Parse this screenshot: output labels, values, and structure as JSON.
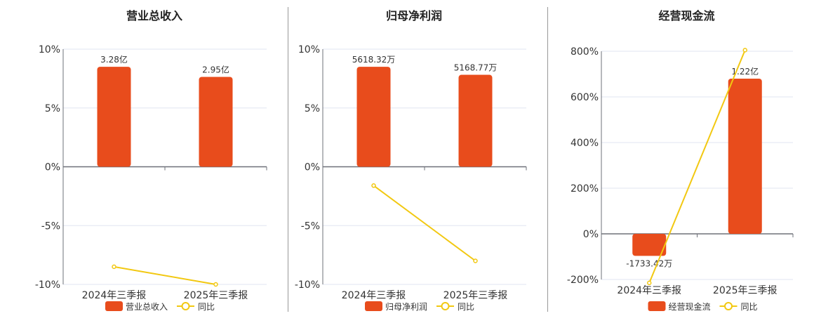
{
  "colors": {
    "bar": "#e84c1c",
    "line": "#f2c811",
    "grid": "#e0e6f0",
    "axis": "#6e7079"
  },
  "chart_data": [
    {
      "type": "bar+line",
      "title": "营业总收入",
      "categories": [
        "2024年三季报",
        "2025年三季报"
      ],
      "bar_series": {
        "name": "营业总收入",
        "values": [
          3.28,
          2.95
        ],
        "labels": [
          "3.28亿",
          "2.95亿"
        ],
        "unit": "亿"
      },
      "line_series": {
        "name": "同比",
        "values": [
          -8.5,
          -10.0
        ],
        "unit": "%"
      },
      "ylim": [
        -10,
        10
      ],
      "yticks": [
        "10%",
        "5%",
        "0%",
        "-5%",
        "-10%"
      ],
      "ytick_values": [
        10,
        5,
        0,
        -5,
        -10
      ],
      "legend": "bottom",
      "grid": true
    },
    {
      "type": "bar+line",
      "title": "归母净利润",
      "categories": [
        "2024年三季报",
        "2025年三季报"
      ],
      "bar_series": {
        "name": "归母净利润",
        "values": [
          5618.32,
          5168.77
        ],
        "labels": [
          "5618.32万",
          "5168.77万"
        ],
        "unit": "万"
      },
      "line_series": {
        "name": "同比",
        "values": [
          -1.6,
          -8.0
        ],
        "unit": "%"
      },
      "ylim": [
        -10,
        10
      ],
      "yticks": [
        "10%",
        "5%",
        "0%",
        "-5%",
        "-10%"
      ],
      "ytick_values": [
        10,
        5,
        0,
        -5,
        -10
      ],
      "legend": "bottom",
      "grid": true
    },
    {
      "type": "bar+line",
      "title": "经营现金流",
      "categories": [
        "2024年三季报",
        "2025年三季报"
      ],
      "bar_series": {
        "name": "经营现金流",
        "values": [
          -1733.42,
          12200
        ],
        "labels": [
          "-1733.42万",
          "1.22亿"
        ],
        "unit": "万"
      },
      "line_series": {
        "name": "同比",
        "values": [
          -215,
          805
        ],
        "unit": "%"
      },
      "ylim": [
        -200,
        800
      ],
      "yticks": [
        "800%",
        "600%",
        "400%",
        "200%",
        "0%",
        "-200%"
      ],
      "ytick_values": [
        800,
        600,
        400,
        200,
        0,
        -200
      ],
      "legend": "bottom",
      "grid": true
    }
  ]
}
